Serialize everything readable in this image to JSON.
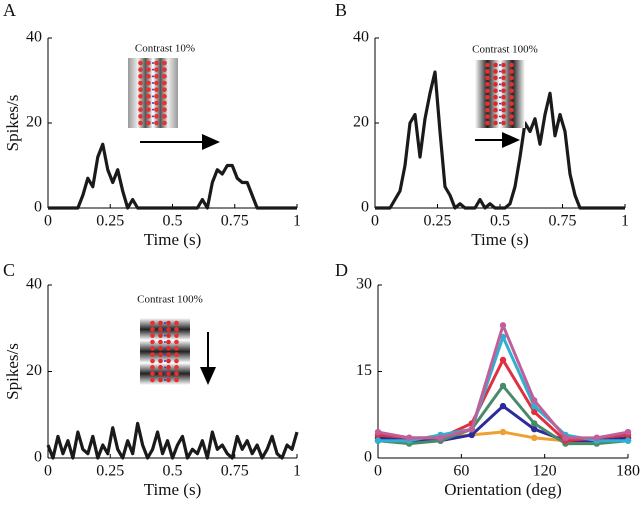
{
  "chart_data": [
    {
      "type": "line",
      "label": "A",
      "inset_text": "Contrast 10%",
      "ylabel": "Spikes/s",
      "xlabel": "Time (s)",
      "xlim": [
        0,
        1
      ],
      "xticks": [
        0,
        0.25,
        0.5,
        0.75,
        1
      ],
      "ylim": [
        0,
        40
      ],
      "yticks": [
        0,
        20,
        40
      ],
      "x": [
        0,
        0.02,
        0.04,
        0.06,
        0.08,
        0.1,
        0.12,
        0.14,
        0.16,
        0.18,
        0.2,
        0.22,
        0.24,
        0.26,
        0.28,
        0.3,
        0.32,
        0.34,
        0.36,
        0.38,
        0.4,
        0.42,
        0.44,
        0.46,
        0.48,
        0.5,
        0.52,
        0.54,
        0.56,
        0.58,
        0.6,
        0.62,
        0.64,
        0.66,
        0.68,
        0.7,
        0.72,
        0.74,
        0.76,
        0.78,
        0.8,
        0.82,
        0.84,
        0.86,
        0.88,
        0.9,
        0.92,
        0.94,
        0.96,
        0.98,
        1
      ],
      "series": [
        {
          "color": "#1a1a1a",
          "values": [
            0,
            0,
            0,
            0,
            0,
            0,
            0,
            3,
            7,
            5,
            12,
            15,
            9,
            6,
            9,
            4,
            0,
            2,
            0,
            0,
            0,
            0,
            0,
            0,
            0,
            0,
            0,
            0,
            0,
            0,
            0,
            2,
            0,
            6,
            9,
            8,
            10,
            10,
            7,
            6,
            6,
            3,
            0,
            0,
            0,
            0,
            0,
            0,
            0,
            0,
            0
          ]
        }
      ]
    },
    {
      "type": "line",
      "label": "B",
      "inset_text": "Contrast 100%",
      "xlabel": "Time (s)",
      "xlim": [
        0,
        1
      ],
      "xticks": [
        0,
        0.25,
        0.5,
        0.75,
        1
      ],
      "ylim": [
        0,
        40
      ],
      "yticks": [
        0,
        20,
        40
      ],
      "x": [
        0,
        0.02,
        0.04,
        0.06,
        0.08,
        0.1,
        0.12,
        0.14,
        0.16,
        0.18,
        0.2,
        0.22,
        0.24,
        0.26,
        0.28,
        0.3,
        0.32,
        0.34,
        0.36,
        0.38,
        0.4,
        0.42,
        0.44,
        0.46,
        0.48,
        0.5,
        0.52,
        0.54,
        0.56,
        0.58,
        0.6,
        0.62,
        0.64,
        0.66,
        0.68,
        0.7,
        0.72,
        0.74,
        0.76,
        0.78,
        0.8,
        0.82,
        0.84,
        0.86,
        0.88,
        0.9,
        0.92,
        0.94,
        0.96,
        0.98,
        1
      ],
      "series": [
        {
          "color": "#1a1a1a",
          "values": [
            0,
            0,
            0,
            0,
            2,
            4,
            10,
            20,
            22,
            12,
            21,
            27,
            32,
            18,
            5,
            3,
            0,
            1,
            0,
            0,
            0,
            2,
            0,
            1,
            0,
            0,
            0,
            1,
            5,
            12,
            20,
            18,
            21,
            15,
            22,
            27,
            17,
            22,
            18,
            8,
            3,
            0,
            0,
            0,
            0,
            0,
            0,
            0,
            0,
            0,
            0
          ]
        }
      ]
    },
    {
      "type": "line",
      "label": "C",
      "inset_text": "Contrast 100%",
      "ylabel": "Spikes/s",
      "xlabel": "Time (s)",
      "xlim": [
        0,
        1
      ],
      "xticks": [
        0,
        0.25,
        0.5,
        0.75,
        1
      ],
      "ylim": [
        0,
        40
      ],
      "yticks": [
        0,
        20,
        40
      ],
      "x": [
        0,
        0.02,
        0.04,
        0.06,
        0.08,
        0.1,
        0.12,
        0.14,
        0.16,
        0.18,
        0.2,
        0.22,
        0.24,
        0.26,
        0.28,
        0.3,
        0.32,
        0.34,
        0.36,
        0.38,
        0.4,
        0.42,
        0.44,
        0.46,
        0.48,
        0.5,
        0.52,
        0.54,
        0.56,
        0.58,
        0.6,
        0.62,
        0.64,
        0.66,
        0.68,
        0.7,
        0.72,
        0.74,
        0.76,
        0.78,
        0.8,
        0.82,
        0.84,
        0.86,
        0.88,
        0.9,
        0.92,
        0.94,
        0.96,
        0.98,
        1
      ],
      "series": [
        {
          "color": "#1a1a1a",
          "values": [
            3,
            0,
            5,
            1,
            4,
            0,
            6,
            2,
            1,
            5,
            0,
            3,
            1,
            7,
            2,
            0,
            4,
            1,
            8,
            3,
            0,
            2,
            6,
            1,
            4,
            0,
            3,
            5,
            0,
            2,
            1,
            4,
            0,
            6,
            2,
            3,
            1,
            0,
            5,
            2,
            4,
            1,
            3,
            0,
            2,
            5,
            1,
            0,
            3,
            2,
            6
          ]
        }
      ]
    },
    {
      "type": "line",
      "label": "D",
      "xlabel": "Orientation (deg)",
      "markers": true,
      "xlim": [
        0,
        180
      ],
      "xticks": [
        0,
        60,
        120,
        180
      ],
      "ylim": [
        0,
        30
      ],
      "yticks": [
        0,
        15,
        30
      ],
      "x": [
        0,
        22.5,
        45,
        67.5,
        90,
        112.5,
        135,
        157.5,
        180
      ],
      "series": [
        {
          "color": "#f0a030",
          "values": [
            4,
            3.5,
            3.5,
            4,
            4.5,
            3.5,
            3,
            3,
            3.5
          ]
        },
        {
          "color": "#2b2b9a",
          "values": [
            3.5,
            3,
            3,
            4,
            9,
            5,
            3,
            3,
            3.5
          ]
        },
        {
          "color": "#4a8a6a",
          "values": [
            3,
            2.5,
            3,
            5,
            12.5,
            6,
            2.5,
            2.5,
            3
          ]
        },
        {
          "color": "#e03040",
          "values": [
            4,
            3.5,
            3.5,
            6,
            17,
            8,
            3,
            3.5,
            4
          ]
        },
        {
          "color": "#30b0d0",
          "values": [
            3,
            3,
            4,
            5,
            21,
            9,
            4,
            3,
            3
          ]
        },
        {
          "color": "#c0609a",
          "values": [
            4.5,
            3.5,
            3.5,
            5,
            23,
            10,
            3.5,
            3.5,
            4.5
          ]
        }
      ]
    }
  ]
}
